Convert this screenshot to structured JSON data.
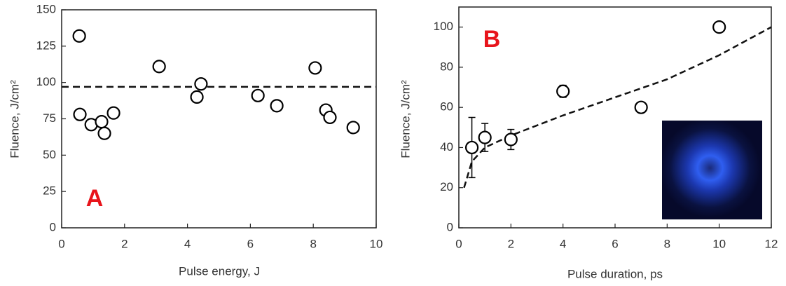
{
  "chart_data": [
    {
      "type": "scatter",
      "panel_label": "A",
      "xlabel": "Pulse energy, J",
      "ylabel": "Fluence, J/cm²",
      "xlim": [
        0,
        10
      ],
      "ylim": [
        0,
        150
      ],
      "xticks": [
        0,
        2,
        4,
        6,
        8,
        10
      ],
      "yticks": [
        0,
        25,
        50,
        75,
        100,
        125,
        150
      ],
      "series": [
        {
          "color": "#000000",
          "x": [
            0.56,
            0.58,
            0.94,
            1.27,
            1.36,
            1.65,
            3.1,
            4.3,
            4.43,
            6.24,
            6.84,
            8.06,
            8.4,
            8.53,
            9.27
          ],
          "values": [
            132,
            78,
            71,
            73,
            65,
            79,
            111,
            90,
            99,
            91,
            84,
            110,
            81,
            76,
            69
          ]
        }
      ],
      "hline": 97
    },
    {
      "type": "scatter",
      "panel_label": "B",
      "xlabel": "Pulse duration, ps",
      "ylabel": "Fluence, J/cm²",
      "xlim": [
        0,
        12
      ],
      "ylim": [
        0,
        110
      ],
      "xticks": [
        0,
        2,
        4,
        6,
        8,
        10,
        12
      ],
      "yticks": [
        0,
        20,
        40,
        60,
        80,
        100
      ],
      "series": [
        {
          "color": "#000000",
          "x": [
            0.5,
            1,
            2,
            4,
            7,
            10
          ],
          "values": [
            40,
            45,
            44,
            68,
            60,
            100
          ],
          "errors": [
            15,
            7,
            5,
            3,
            null,
            null
          ]
        }
      ],
      "fit": {
        "x": [
          0.2,
          0.5,
          1,
          2,
          4,
          6,
          8,
          10,
          12
        ],
        "y": [
          20,
          33,
          40,
          46,
          56,
          65,
          74,
          86,
          100
        ]
      }
    }
  ]
}
